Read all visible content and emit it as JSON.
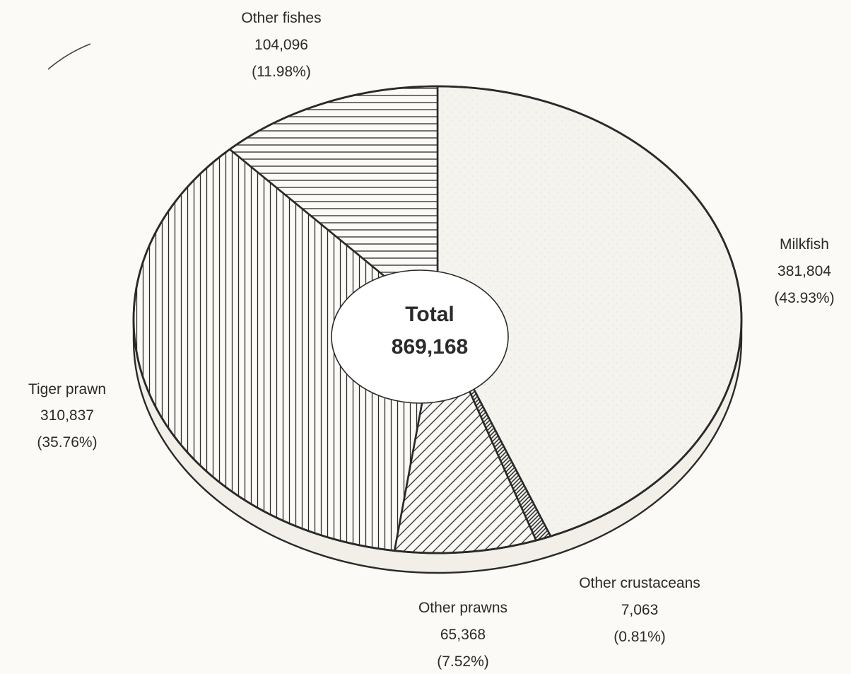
{
  "chart_data": {
    "type": "pie",
    "total_label": "Total",
    "total_value": "869,168",
    "slices": [
      {
        "name": "Milkfish",
        "value": 381804,
        "value_text": "381,804",
        "pct_text": "(43.93%)",
        "pattern": "dots-light"
      },
      {
        "name": "Other crustaceans",
        "value": 7063,
        "value_text": "7,063",
        "pct_text": "(0.81%)",
        "pattern": "dense-diagonal"
      },
      {
        "name": "Other prawns",
        "value": 65368,
        "value_text": "65,368",
        "pct_text": "(7.52%)",
        "pattern": "diagonal"
      },
      {
        "name": "Tiger prawn",
        "value": 310837,
        "value_text": "310,837",
        "pct_text": "(35.76%)",
        "pattern": "vertical"
      },
      {
        "name": "Other fishes",
        "value": 104096,
        "value_text": "104,096",
        "pct_text": "(11.98%)",
        "pattern": "horizontal"
      }
    ],
    "colors": {
      "ink": "#2a2a2a",
      "background": "#fbfaf6",
      "milkfish_fill": "#f4f3ee"
    }
  }
}
